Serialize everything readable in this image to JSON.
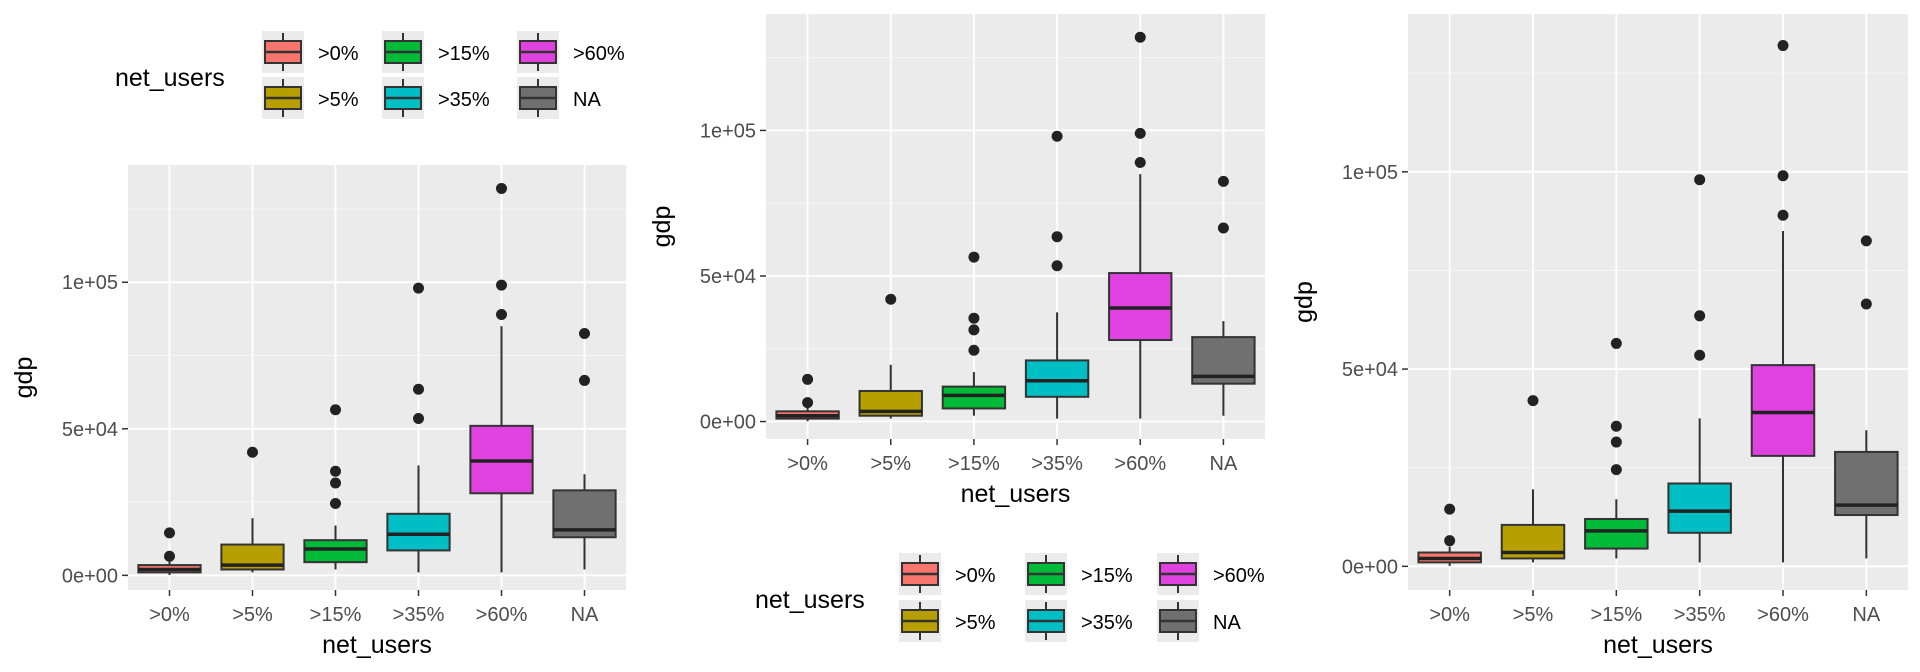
{
  "chart_data": [
    {
      "type": "box",
      "title": "",
      "xlabel": "net_users",
      "ylabel": "gdp",
      "legend": {
        "title": "net_users",
        "position": "top"
      },
      "categories": [
        ">0%",
        ">5%",
        ">15%",
        ">35%",
        ">60%",
        "NA"
      ],
      "y_ticks": [
        "0e+00",
        "5e+04",
        "1e+05"
      ],
      "ylim": [
        -5000,
        140000
      ],
      "grid": true
    },
    {
      "type": "box",
      "title": "",
      "xlabel": "net_users",
      "ylabel": "gdp",
      "legend": {
        "title": "net_users",
        "position": "bottom"
      },
      "categories": [
        ">0%",
        ">5%",
        ">15%",
        ">35%",
        ">60%",
        "NA"
      ],
      "y_ticks": [
        "0e+00",
        "5e+04",
        "1e+05"
      ],
      "ylim": [
        -6000,
        140000
      ],
      "grid": true
    },
    {
      "type": "box",
      "title": "",
      "xlabel": "net_users",
      "ylabel": "gdp",
      "legend": {
        "title": "",
        "position": "none"
      },
      "categories": [
        ">0%",
        ">5%",
        ">15%",
        ">35%",
        ">60%",
        "NA"
      ],
      "y_ticks": [
        "0e+00",
        "5e+04",
        "1e+05"
      ],
      "ylim": [
        -6000,
        140000
      ],
      "grid": true
    }
  ],
  "series": [
    {
      "category": ">0%",
      "color": "#F8766D",
      "min": 100,
      "q1": 1000,
      "median": 2000,
      "q3": 3500,
      "max": 5000,
      "outliers": [
        6500,
        14500
      ]
    },
    {
      "category": ">5%",
      "color": "#B79F00",
      "min": 1000,
      "q1": 2000,
      "median": 3500,
      "q3": 10500,
      "max": 19500,
      "outliers": [
        42000
      ]
    },
    {
      "category": ">15%",
      "color": "#00BA38",
      "min": 2000,
      "q1": 4500,
      "median": 9000,
      "q3": 12000,
      "max": 17000,
      "outliers": [
        24500,
        31500,
        35500,
        56500
      ]
    },
    {
      "category": ">35%",
      "color": "#00BFC4",
      "min": 1000,
      "q1": 8500,
      "median": 14000,
      "q3": 21000,
      "max": 37500,
      "outliers": [
        53500,
        63500,
        98000
      ]
    },
    {
      "category": ">60%",
      "color": "#E042E0",
      "min": 1000,
      "q1": 28000,
      "median": 39000,
      "q3": 51000,
      "max": 85000,
      "outliers": [
        89000,
        99000,
        132000
      ]
    },
    {
      "category": "NA",
      "color": "#707070",
      "min": 2000,
      "q1": 13000,
      "median": 15500,
      "q3": 29000,
      "max": 34500,
      "outliers": [
        66500,
        82500
      ]
    }
  ],
  "colors": {
    "panel_background": "#EBEBEB",
    "grid_major": "#FFFFFF",
    "axis_text": "#4D4D4D",
    "title_text": "#000000"
  }
}
